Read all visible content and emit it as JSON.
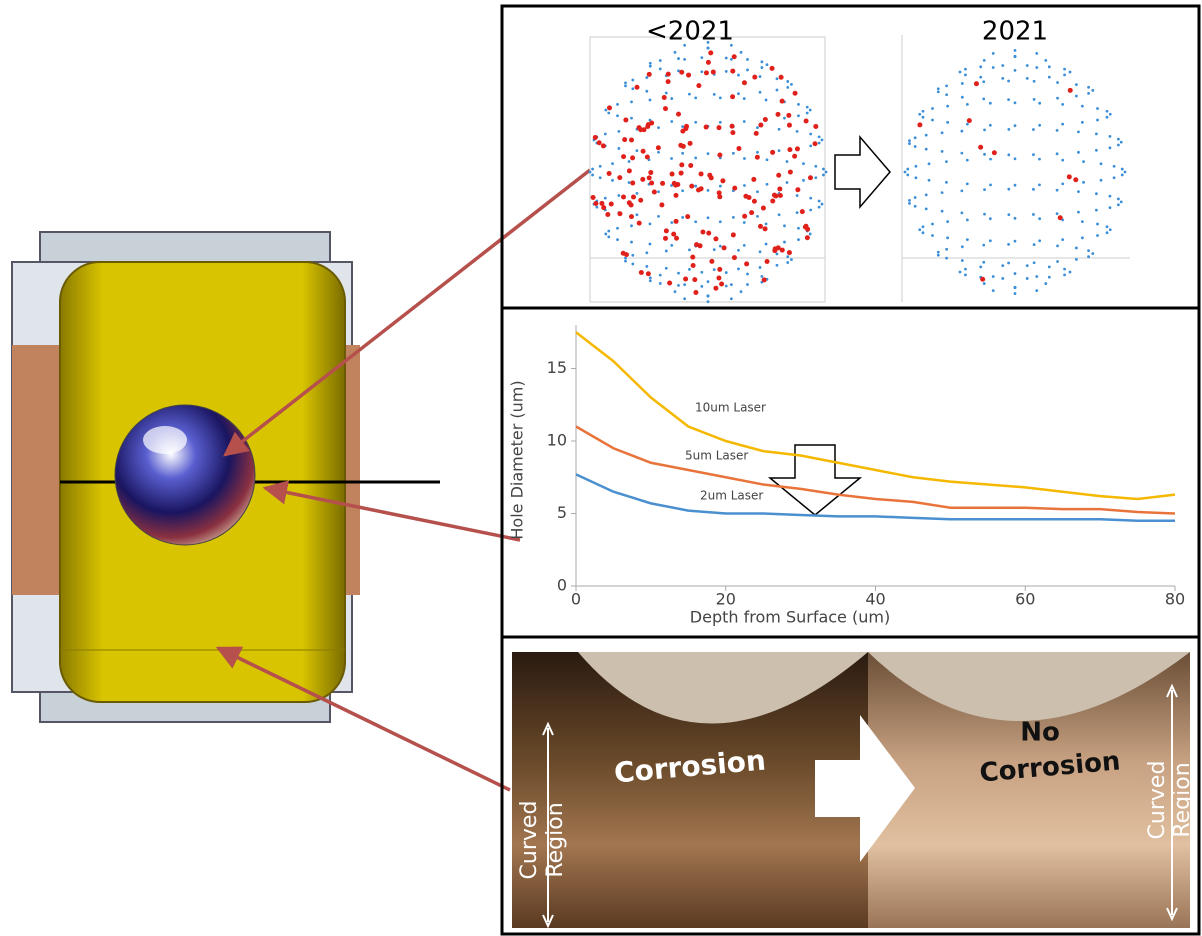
{
  "top_panel": {
    "before_label": "<2021",
    "after_label": "2021"
  },
  "chart_data": {
    "type": "line",
    "ylabel": "Hole Diameter (um)",
    "xlabel": "Depth from Surface (um)",
    "x": [
      0,
      5,
      10,
      15,
      20,
      25,
      30,
      35,
      40,
      45,
      50,
      55,
      60,
      65,
      70,
      75,
      80
    ],
    "series": [
      {
        "name": "10um Laser",
        "color": "#f5b800",
        "values": [
          17.5,
          15.5,
          13,
          11,
          10,
          9.3,
          9,
          8.5,
          8,
          7.5,
          7.2,
          7,
          6.8,
          6.5,
          6.2,
          6,
          6.3
        ]
      },
      {
        "name": "5um Laser",
        "color": "#e8743b",
        "values": [
          11,
          9.5,
          8.5,
          8,
          7.5,
          7,
          6.7,
          6.3,
          6,
          5.8,
          5.4,
          5.4,
          5.4,
          5.3,
          5.3,
          5.1,
          5
        ]
      },
      {
        "name": "2um Laser",
        "color": "#4a90d0",
        "values": [
          7.7,
          6.5,
          5.7,
          5.2,
          5,
          5,
          4.9,
          4.8,
          4.8,
          4.7,
          4.6,
          4.6,
          4.6,
          4.6,
          4.6,
          4.5,
          4.5
        ]
      }
    ],
    "xlim": [
      0,
      80
    ],
    "xticks": [
      0,
      20,
      40,
      60,
      80
    ],
    "ylim": [
      0,
      18
    ],
    "yticks": [
      0,
      5,
      10,
      15
    ]
  },
  "bottom_panel": {
    "before_label": "Corrosion",
    "after_label": [
      "No",
      "Corrosion"
    ],
    "region_label": [
      "Curved",
      "Region"
    ]
  }
}
